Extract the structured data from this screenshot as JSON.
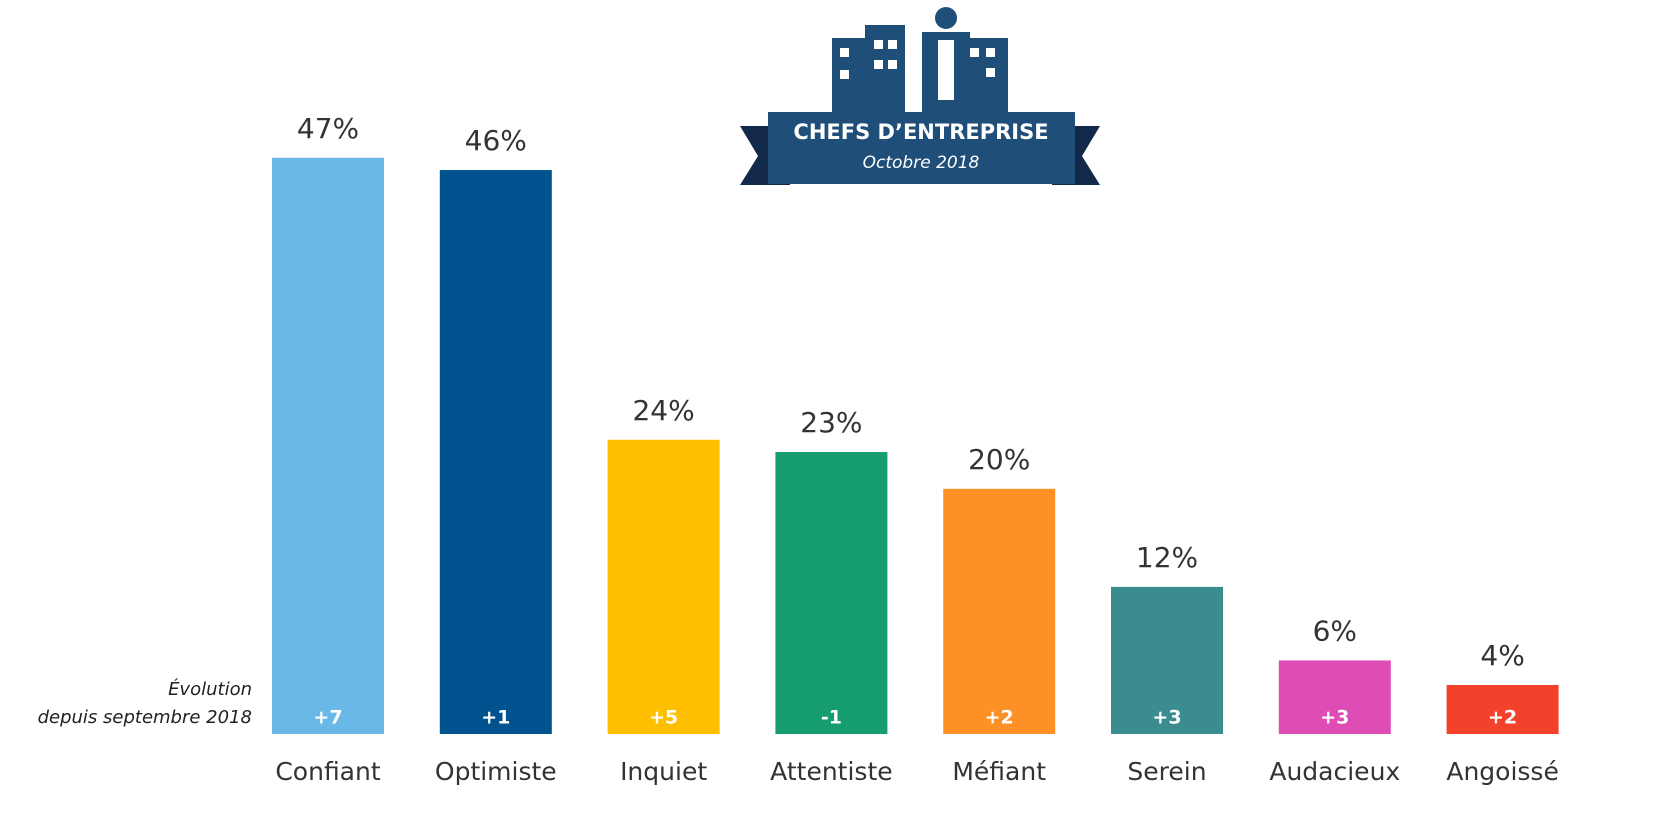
{
  "chart_data": {
    "type": "bar",
    "categories": [
      "Confiant",
      "Optimiste",
      "Inquiet",
      "Attentiste",
      "Méfiant",
      "Serein",
      "Audacieux",
      "Angoissé"
    ],
    "values": [
      47,
      46,
      24,
      23,
      20,
      12,
      6,
      4
    ],
    "value_labels": [
      "47%",
      "46%",
      "24%",
      "23%",
      "20%",
      "12%",
      "6%",
      "4%"
    ],
    "colors": [
      "#69b8e8",
      "#00538e",
      "#fdbf00",
      "#159c71",
      "#fd9125",
      "#3a8c8f",
      "#de4db5",
      "#f3422b"
    ],
    "evolution": {
      "label": [
        "Évolution",
        "depuis septembre 2018"
      ],
      "values": [
        7,
        1,
        5,
        -1,
        2,
        3,
        3,
        2
      ],
      "value_labels": [
        "+7",
        "+1",
        "+5",
        "-1",
        "+2",
        "+3",
        "+3",
        "+2"
      ]
    },
    "badge": {
      "title": "CHEFS D’ENTREPRISE",
      "subtitle": "Octobre 2018"
    }
  }
}
